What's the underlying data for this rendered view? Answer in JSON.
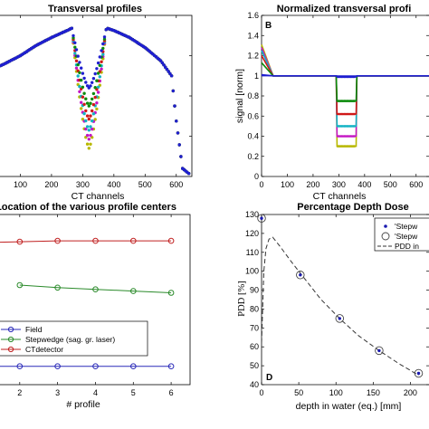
{
  "chart_data": [
    {
      "id": "A",
      "type": "scatter",
      "title": "Transversal profiles",
      "xlabel": "CT channels",
      "ylabel": "",
      "xlim": [
        0,
        650
      ],
      "ylim": [
        0,
        1.6
      ],
      "xticks": [
        "100",
        "200",
        "300",
        "400",
        "500",
        "600"
      ],
      "yticks": [],
      "grid": false,
      "series_colors": [
        "#1f1fd0",
        "#0b8a0b",
        "#d01818",
        "#12b3c4",
        "#c416c4",
        "#b8b800"
      ],
      "dip_centre": 320,
      "dip_floor": [
        0.88,
        0.7,
        0.57,
        0.46,
        0.37,
        0.28
      ],
      "profile_points": [
        [
          0,
          1.05
        ],
        [
          50,
          1.12
        ],
        [
          100,
          1.2
        ],
        [
          150,
          1.3
        ],
        [
          200,
          1.38
        ],
        [
          250,
          1.45
        ],
        [
          270,
          1.48
        ],
        [
          290,
          1.4
        ],
        [
          310,
          1.3
        ],
        [
          330,
          1.3
        ],
        [
          350,
          1.4
        ],
        [
          380,
          1.47
        ],
        [
          400,
          1.45
        ],
        [
          450,
          1.38
        ],
        [
          500,
          1.28
        ],
        [
          550,
          1.15
        ],
        [
          585,
          1.0
        ],
        [
          600,
          0.55
        ],
        [
          620,
          0.08
        ],
        [
          640,
          0.03
        ]
      ]
    },
    {
      "id": "B",
      "type": "line",
      "panel_letter": "B",
      "title": "Normalized transversal profi",
      "xlabel": "CT channels",
      "ylabel": "signal [norm]",
      "xlim": [
        0,
        650
      ],
      "ylim": [
        0,
        1.6
      ],
      "xticks": [
        "0",
        "100",
        "200",
        "300",
        "400",
        "500",
        "600"
      ],
      "yticks": [
        "0",
        "0.2",
        "0.4",
        "0.6",
        "0.8",
        "1",
        "1.2",
        "1.4",
        "1.6"
      ],
      "grid": false,
      "dip_x": [
        290,
        370
      ],
      "series": [
        {
          "color": "#1f1fd0",
          "start": 1.01,
          "level": 0.99
        },
        {
          "color": "#0b8a0b",
          "start": 1.13,
          "level": 0.75
        },
        {
          "color": "#d01818",
          "start": 1.2,
          "level": 0.62
        },
        {
          "color": "#12b3c4",
          "start": 1.25,
          "level": 0.5
        },
        {
          "color": "#c416c4",
          "start": 1.28,
          "level": 0.4
        },
        {
          "color": "#b8b800",
          "start": 1.31,
          "level": 0.3
        }
      ]
    },
    {
      "id": "C",
      "type": "line",
      "title": "Location of the various profile centers",
      "xlabel": "# profile",
      "ylabel": "",
      "xlim": [
        1,
        6.5
      ],
      "ylim": [
        0,
        10
      ],
      "xticks": [
        "2",
        "3",
        "4",
        "5",
        "6"
      ],
      "yticks": [],
      "grid": false,
      "legend_position": "lower-left",
      "series": [
        {
          "name": "Field",
          "color": "#2a2ab8",
          "x": [
            1,
            2,
            3,
            4,
            5,
            6
          ],
          "y": [
            1.08,
            1.08,
            1.08,
            1.08,
            1.08,
            1.08
          ]
        },
        {
          "name": "Stepwedge (sag. gr. laser)",
          "color": "#2a8a2a",
          "x": [
            2,
            3,
            4,
            5,
            6
          ],
          "y": [
            5.85,
            5.7,
            5.6,
            5.5,
            5.4
          ]
        },
        {
          "name": "CTdetector",
          "color": "#c02020",
          "x": [
            1,
            2,
            3,
            4,
            5,
            6
          ],
          "y": [
            8.35,
            8.4,
            8.45,
            8.45,
            8.45,
            8.45
          ]
        }
      ]
    },
    {
      "id": "D",
      "type": "line",
      "panel_letter": "D",
      "title": "Percentage Depth Dose",
      "xlabel": "depth in water (eq.) [mm]",
      "ylabel": "PDD [%]",
      "xlim": [
        0,
        225
      ],
      "ylim": [
        40,
        130
      ],
      "xticks": [
        "0",
        "50",
        "100",
        "150",
        "200"
      ],
      "yticks": [
        "40",
        "50",
        "60",
        "70",
        "80",
        "90",
        "100",
        "110",
        "120",
        "130"
      ],
      "grid": false,
      "legend_position": "top-right",
      "series": [
        {
          "name": "'Stepw",
          "style": "dot",
          "x": [
            0,
            52,
            105,
            158,
            211
          ],
          "y": [
            128,
            98,
            75,
            58,
            46
          ]
        },
        {
          "name": "'Stepw",
          "style": "circle",
          "x": [
            0,
            52,
            105,
            158,
            211
          ],
          "y": [
            128,
            98,
            75,
            58,
            46
          ]
        },
        {
          "name": "PDD in",
          "style": "dashed",
          "x": [
            0,
            3,
            6,
            10,
            15,
            25,
            40,
            60,
            80,
            105,
            130,
            158,
            185,
            211
          ],
          "y": [
            62,
            100,
            112,
            117,
            118,
            113,
            105,
            95,
            85,
            75,
            66,
            58,
            51,
            45
          ]
        }
      ]
    }
  ]
}
